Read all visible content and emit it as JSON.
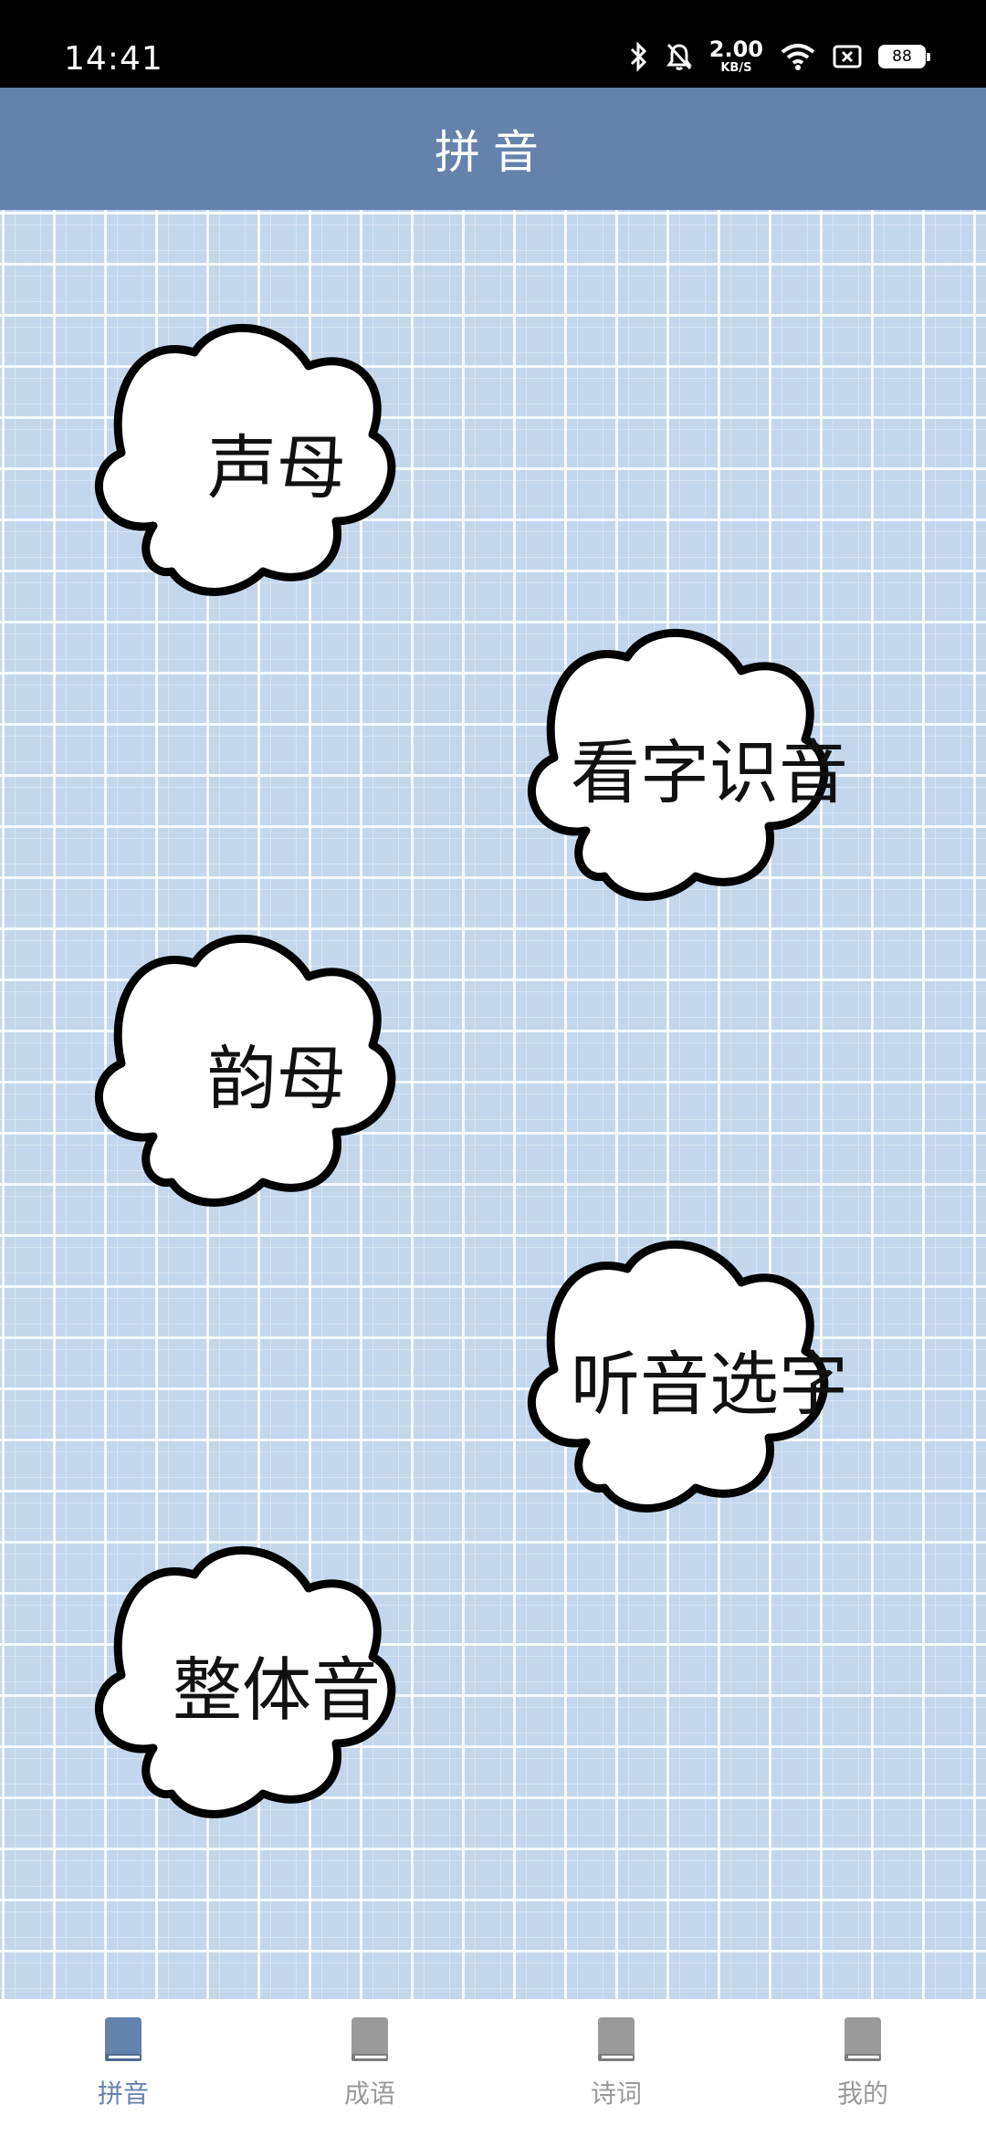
{
  "status_bar": {
    "time": "14:41",
    "net_speed_value": "2.00",
    "net_speed_unit": "KB/S",
    "battery": "88",
    "icons": [
      "bluetooth-icon",
      "mute-bell-icon",
      "wifi-icon",
      "no-sim-icon",
      "battery-icon"
    ]
  },
  "header": {
    "title": "拼音"
  },
  "clouds": [
    {
      "label": "声母"
    },
    {
      "label": "看字识音"
    },
    {
      "label": "韵母"
    },
    {
      "label": "听音选字"
    },
    {
      "label": "整体音"
    }
  ],
  "bottom_nav": {
    "items": [
      {
        "label": "拼音",
        "icon": "book-icon",
        "active": true
      },
      {
        "label": "成语",
        "icon": "book-icon",
        "active": false
      },
      {
        "label": "诗词",
        "icon": "book-icon",
        "active": false
      },
      {
        "label": "我的",
        "icon": "book-icon",
        "active": false
      }
    ]
  },
  "colors": {
    "header_bg": "#6482ac",
    "grid_bg": "#c3d6ec",
    "nav_active": "#6482ac",
    "nav_inactive": "#999999"
  }
}
